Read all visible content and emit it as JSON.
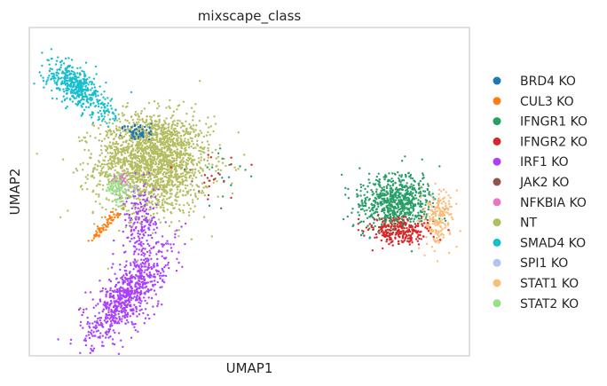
{
  "chart_data": {
    "type": "scatter",
    "title": "mixscape_class",
    "xlabel": "UMAP1",
    "ylabel": "UMAP2",
    "xlim": [
      0,
      100
    ],
    "ylim": [
      0,
      100
    ],
    "grid": false,
    "show_ticks": false,
    "legend_position": "right",
    "series": [
      {
        "name": "BRD4 KO",
        "color": "#1f77b4",
        "clusters": [
          {
            "x": 25,
            "y": 68,
            "sx": 1.6,
            "sy": 1.6,
            "n": 60
          }
        ]
      },
      {
        "name": "CUL3 KO",
        "color": "#ff7f0e",
        "clusters": [
          {
            "x1": 14,
            "y1": 35,
            "x2": 20.5,
            "y2": 44,
            "jitter": 0.5,
            "n": 70
          }
        ]
      },
      {
        "name": "IFNGR1 KO",
        "color": "#279e68",
        "clusters": [
          {
            "x": 83,
            "y": 47,
            "sx": 4.2,
            "sy": 4.2,
            "n": 700
          },
          {
            "x": 44,
            "y": 55,
            "sx": 3.5,
            "sy": 3.5,
            "n": 15
          }
        ]
      },
      {
        "name": "IFNGR2 KO",
        "color": "#d62728",
        "clusters": [
          {
            "x": 84,
            "y": 38,
            "sx": 3.4,
            "sy": 2.0,
            "n": 260
          },
          {
            "x": 42,
            "y": 52,
            "sx": 3.5,
            "sy": 4.0,
            "n": 15
          }
        ]
      },
      {
        "name": "IRF1 KO",
        "color": "#aa40fc",
        "clusters": [
          {
            "x": 22,
            "y": 18,
            "sx": 4.5,
            "sy": 7.5,
            "n": 750,
            "rho": 0.72
          },
          {
            "x": 25.5,
            "y": 40,
            "sx": 2.0,
            "sy": 6.0,
            "n": 180
          }
        ]
      },
      {
        "name": "JAK2 KO",
        "color": "#8c564b",
        "clusters": [
          {
            "x": 42,
            "y": 52,
            "sx": 3.0,
            "sy": 3.0,
            "n": 10
          }
        ]
      },
      {
        "name": "NFKBIA KO",
        "color": "#e377c2",
        "clusters": [
          {
            "x": 21,
            "y": 54,
            "sx": 1.0,
            "sy": 1.0,
            "n": 18
          }
        ]
      },
      {
        "name": "NT",
        "color": "#b5bd61",
        "clusters": [
          {
            "x": 28,
            "y": 58,
            "sx": 6.5,
            "sy": 7.5,
            "n": 1700
          },
          {
            "x": 28,
            "y": 66,
            "sx": 5.0,
            "sy": 4.0,
            "n": 400
          }
        ]
      },
      {
        "name": "SMAD4 KO",
        "color": "#17becf",
        "clusters": [
          {
            "x": 10.5,
            "y": 82,
            "sx": 3.5,
            "sy": 4.0,
            "n": 380,
            "rho": -0.6
          },
          {
            "x1": 6,
            "y1": 90,
            "x2": 19,
            "y2": 72,
            "jitter": 1.2,
            "n": 90
          }
        ]
      },
      {
        "name": "SPI1 KO",
        "color": "#aec7e8",
        "clusters": [
          {
            "x": 23,
            "y": 50,
            "sx": 1.5,
            "sy": 1.5,
            "n": 10
          }
        ]
      },
      {
        "name": "STAT1 KO",
        "color": "#ffbb78",
        "clusters": [
          {
            "x": 93,
            "y": 42,
            "sx": 1.6,
            "sy": 4.5,
            "n": 200
          }
        ]
      },
      {
        "name": "STAT2 KO",
        "color": "#98df8a",
        "clusters": [
          {
            "x": 20,
            "y": 51,
            "sx": 1.4,
            "sy": 2.2,
            "n": 90
          }
        ]
      }
    ]
  }
}
